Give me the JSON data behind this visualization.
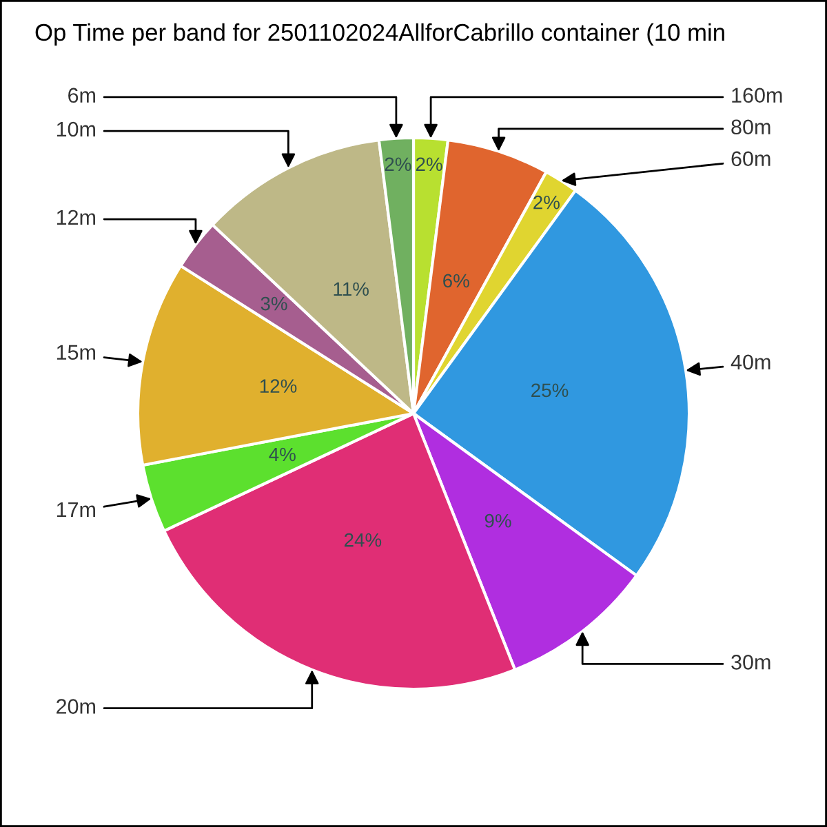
{
  "chart_data": {
    "type": "pie",
    "title": "Op Time per band for 2501102024AllforCabrillo container (10 min",
    "categories": [
      "160m",
      "80m",
      "60m",
      "40m",
      "30m",
      "20m",
      "17m",
      "15m",
      "12m",
      "10m",
      "6m"
    ],
    "values": [
      2,
      6,
      2,
      25,
      9,
      24,
      4,
      12,
      3,
      11,
      2
    ],
    "colors": [
      "#b8e030",
      "#e0652e",
      "#e0d530",
      "#3098e0",
      "#b02ee0",
      "#e02e75",
      "#5ce02e",
      "#e0b02e",
      "#a65e8f",
      "#beb887",
      "#70b060"
    ],
    "value_labels": [
      "2%",
      "6%",
      "2%",
      "25%",
      "9%",
      "24%",
      "4%",
      "12%",
      "3%",
      "11%",
      "2%"
    ]
  }
}
